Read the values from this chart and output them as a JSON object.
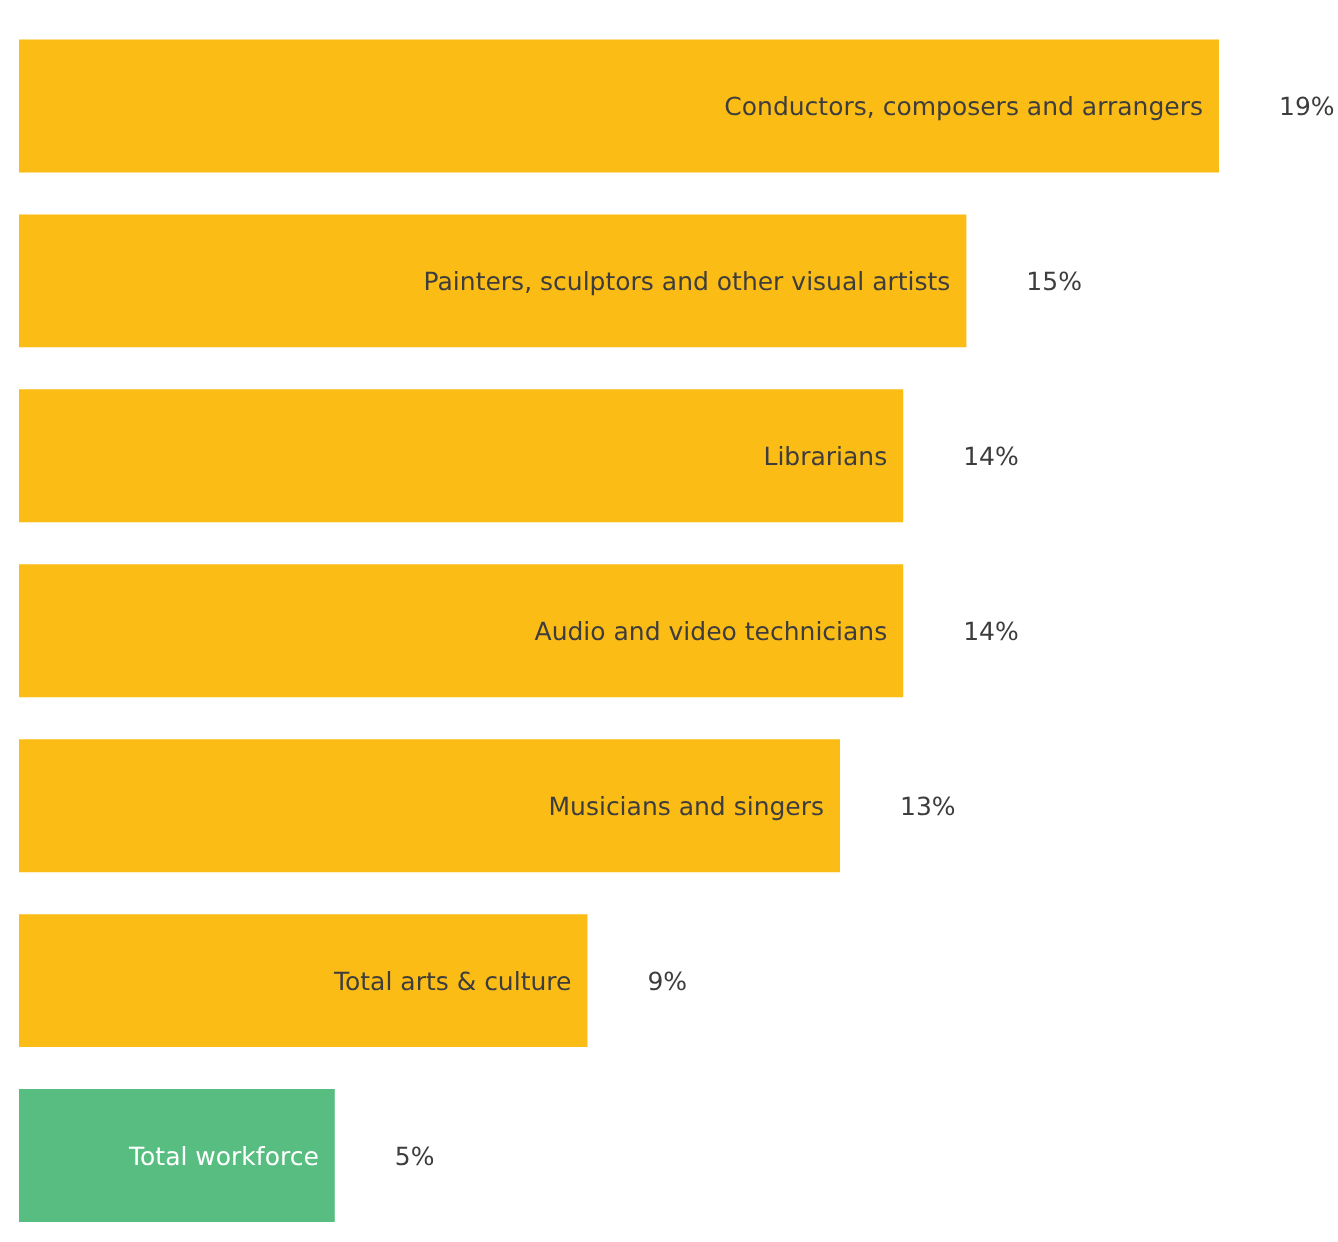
{
  "chart_data": {
    "type": "bar",
    "orientation": "horizontal",
    "categories": [
      "Conductors, composers and arrangers",
      "Painters, sculptors and other visual artists",
      "Librarians",
      "Audio and video technicians",
      "Musicians and singers",
      "Total arts & culture",
      "Total workforce"
    ],
    "values": [
      19,
      15,
      14,
      14,
      13,
      9,
      5
    ],
    "colors": [
      "#fbbc16",
      "#fbbc16",
      "#fbbc16",
      "#fbbc16",
      "#fbbc16",
      "#fbbc16",
      "#57bd80"
    ],
    "value_labels": [
      "19%",
      "15%",
      "14%",
      "14%",
      "13%",
      "9%",
      "5%"
    ]
  }
}
